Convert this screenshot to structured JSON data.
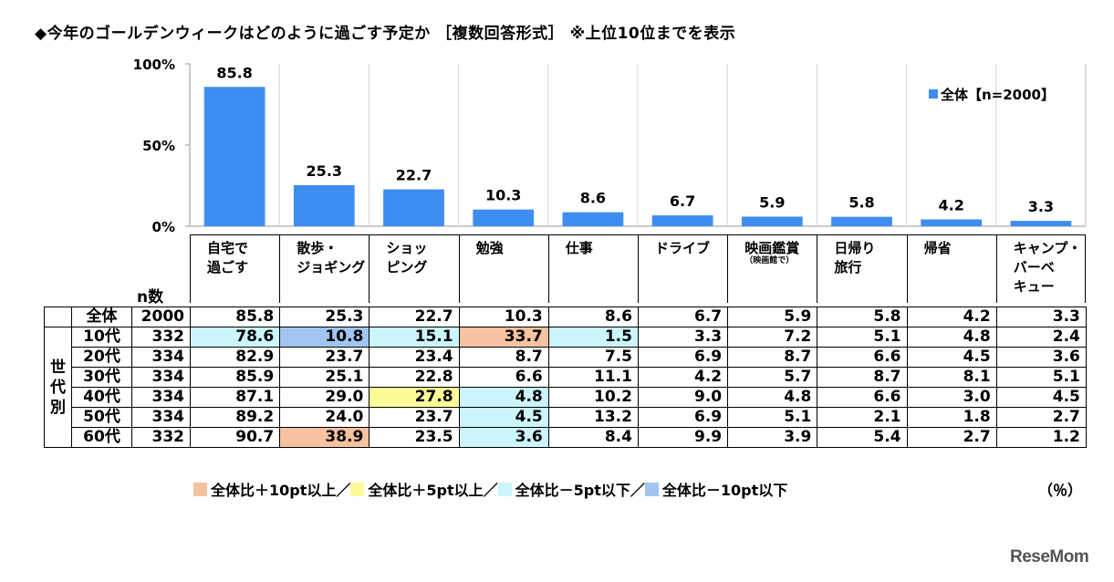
{
  "title": "◆今年のゴールデンウィークはどのように過ごす予定か ［複数回答形式］ ※上位10位までを表示",
  "chart_data": {
    "type": "bar",
    "categories": [
      "自宅で過ごす",
      "散歩・ジョギング",
      "ショッピング",
      "勉強",
      "仕事",
      "ドライブ",
      "映画鑑賞",
      "日帰り旅行",
      "帰省",
      "キャンプ・バーベキュー"
    ],
    "series": [
      {
        "name": "全体【n=2000】",
        "values": [
          85.8,
          25.3,
          22.7,
          10.3,
          8.6,
          6.7,
          5.9,
          5.8,
          4.2,
          3.3
        ],
        "color": "#3d8ef0"
      }
    ],
    "ytick_labels": [
      "100%",
      "50%",
      "0%"
    ],
    "ylim": [
      0,
      100
    ],
    "grid": "vertical-separators",
    "legend_placement": "top-right"
  },
  "category_labels": [
    {
      "text": "自宅で\n過ごす",
      "sub": ""
    },
    {
      "text": "散歩・\nジョギング",
      "sub": ""
    },
    {
      "text": "ショッ\nピング",
      "sub": ""
    },
    {
      "text": "勉強",
      "sub": ""
    },
    {
      "text": "仕事",
      "sub": ""
    },
    {
      "text": "ドライブ",
      "sub": ""
    },
    {
      "text": "映画鑑賞",
      "sub": "（映画館で）"
    },
    {
      "text": "日帰り\n旅行",
      "sub": ""
    },
    {
      "text": "帰省",
      "sub": ""
    },
    {
      "text": "キャンプ・\nバーベ\nキュー",
      "sub": ""
    }
  ],
  "table": {
    "n_header": "n数",
    "group_label": "世\n代\n別",
    "rows": [
      {
        "label": "全体",
        "n": "2000",
        "values": [
          "85.8",
          "25.3",
          "22.7",
          "10.3",
          "8.6",
          "6.7",
          "5.9",
          "5.8",
          "4.2",
          "3.3"
        ],
        "highlight": [
          "",
          "",
          "",
          "",
          "",
          "",
          "",
          "",
          "",
          ""
        ]
      },
      {
        "label": "10代",
        "n": "332",
        "values": [
          "78.6",
          "10.8",
          "15.1",
          "33.7",
          "1.5",
          "3.3",
          "7.2",
          "5.1",
          "4.8",
          "2.4"
        ],
        "highlight": [
          "lightcyan",
          "blue",
          "lightcyan",
          "orange",
          "lightcyan",
          "",
          "",
          "",
          "",
          ""
        ]
      },
      {
        "label": "20代",
        "n": "334",
        "values": [
          "82.9",
          "23.7",
          "23.4",
          "8.7",
          "7.5",
          "6.9",
          "8.7",
          "6.6",
          "4.5",
          "3.6"
        ],
        "highlight": [
          "",
          "",
          "",
          "",
          "",
          "",
          "",
          "",
          "",
          ""
        ]
      },
      {
        "label": "30代",
        "n": "334",
        "values": [
          "85.9",
          "25.1",
          "22.8",
          "6.6",
          "11.1",
          "4.2",
          "5.7",
          "8.7",
          "8.1",
          "5.1"
        ],
        "highlight": [
          "",
          "",
          "",
          "",
          "",
          "",
          "",
          "",
          "",
          ""
        ]
      },
      {
        "label": "40代",
        "n": "334",
        "values": [
          "87.1",
          "29.0",
          "27.8",
          "4.8",
          "10.2",
          "9.0",
          "4.8",
          "6.6",
          "3.0",
          "4.5"
        ],
        "highlight": [
          "",
          "",
          "yellow",
          "lightcyan",
          "",
          "",
          "",
          "",
          "",
          ""
        ]
      },
      {
        "label": "50代",
        "n": "334",
        "values": [
          "89.2",
          "24.0",
          "23.7",
          "4.5",
          "13.2",
          "6.9",
          "5.1",
          "2.1",
          "1.8",
          "2.7"
        ],
        "highlight": [
          "",
          "",
          "",
          "lightcyan",
          "",
          "",
          "",
          "",
          "",
          ""
        ]
      },
      {
        "label": "60代",
        "n": "332",
        "values": [
          "90.7",
          "38.9",
          "23.5",
          "3.6",
          "8.4",
          "9.9",
          "3.9",
          "5.4",
          "2.7",
          "1.2"
        ],
        "highlight": [
          "",
          "orange",
          "",
          "lightcyan",
          "",
          "",
          "",
          "",
          "",
          ""
        ]
      }
    ]
  },
  "highlight_legend": [
    {
      "key": "orange",
      "color": "#f6c2a0",
      "label": "全体比＋10pt以上／"
    },
    {
      "key": "yellow",
      "color": "#fdfb97",
      "label": "全体比＋5pt以上／"
    },
    {
      "key": "lightcyan",
      "color": "#ccf5fb",
      "label": "全体比－5pt以下／"
    },
    {
      "key": "blue",
      "color": "#9fc5f0",
      "label": "全体比－10pt以下"
    }
  ],
  "unit_label": "（％）",
  "logo": "ReseMom"
}
